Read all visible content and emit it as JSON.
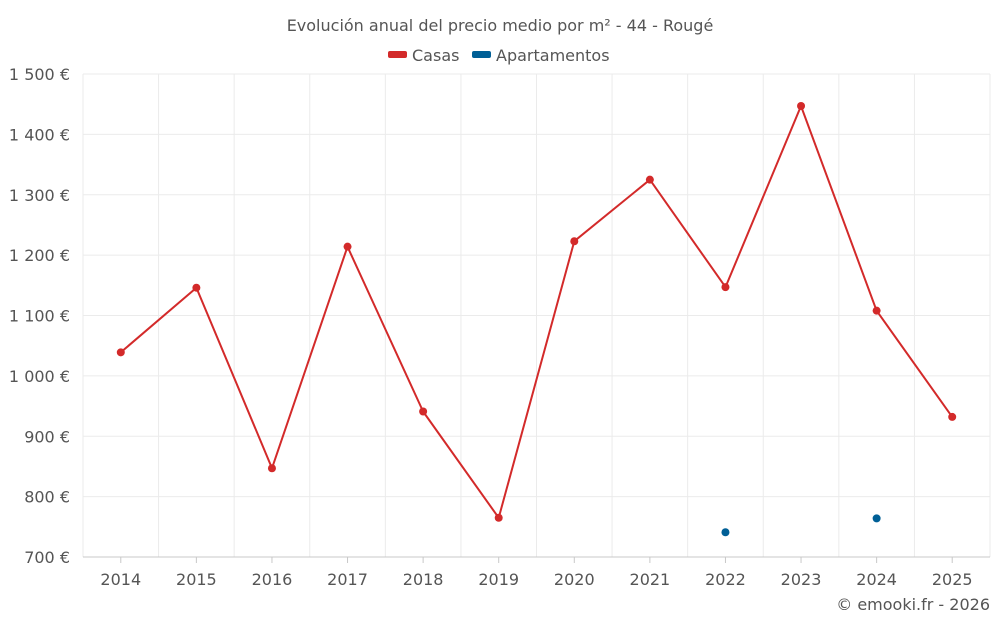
{
  "chart_data": {
    "type": "line",
    "title": "Evolución anual del precio medio por m² - 44 - Rougé",
    "xlabel": "",
    "ylabel": "",
    "categories": [
      "2014",
      "2015",
      "2016",
      "2017",
      "2018",
      "2019",
      "2020",
      "2021",
      "2022",
      "2023",
      "2024",
      "2025"
    ],
    "ylim": [
      700,
      1500
    ],
    "yticks": [
      700,
      800,
      900,
      1000,
      1100,
      1200,
      1300,
      1400,
      1500
    ],
    "ytick_labels": [
      "700 €",
      "800 €",
      "900 €",
      "1 000 €",
      "1 100 €",
      "1 200 €",
      "1 300 €",
      "1 400 €",
      "1 500 €"
    ],
    "grid": true,
    "legend_position": "top-center",
    "series": [
      {
        "name": "Casas",
        "color": "#d32a2a",
        "values": [
          1039,
          1146,
          847,
          1214,
          941,
          765,
          1223,
          1325,
          1147,
          1447,
          1108,
          932
        ]
      },
      {
        "name": "Apartamentos",
        "color": "#005f96",
        "values": [
          null,
          null,
          null,
          null,
          null,
          null,
          null,
          null,
          741,
          null,
          764,
          null
        ]
      }
    ]
  },
  "credit": "© emooki.fr - 2026"
}
